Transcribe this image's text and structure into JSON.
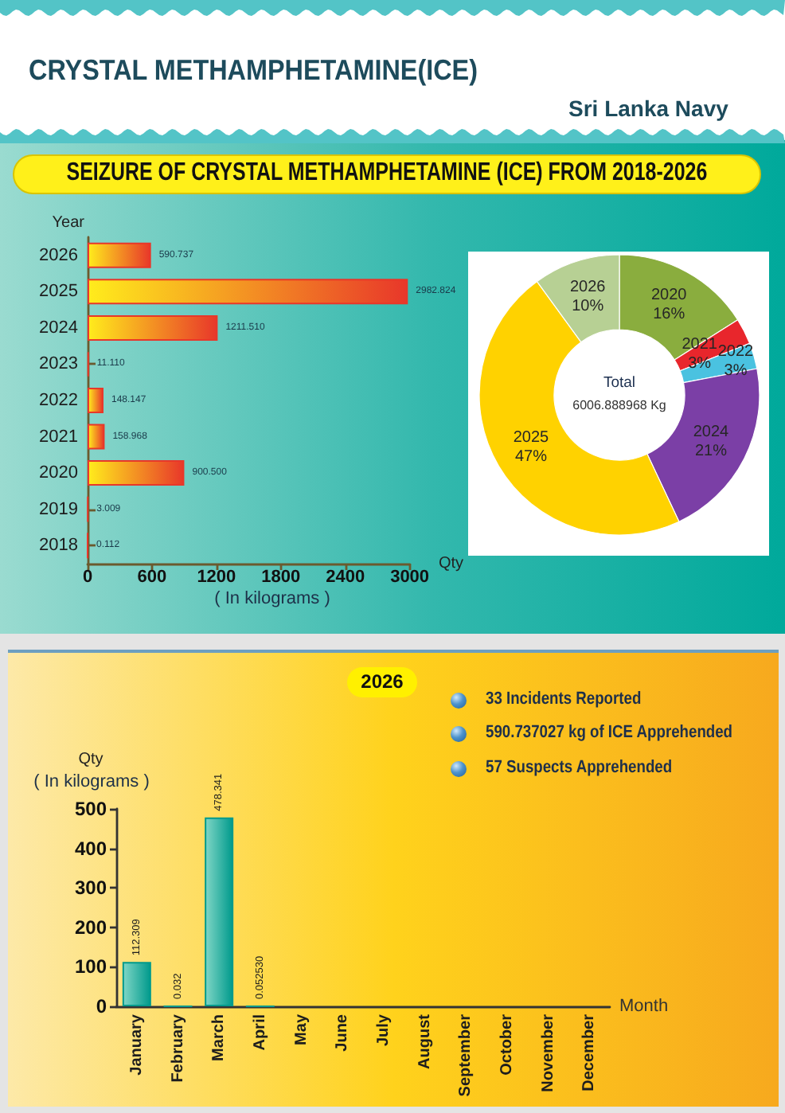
{
  "chart_data": [
    {
      "type": "bar",
      "orientation": "horizontal",
      "title": "CRYSTAL METHAMPHETAMINE(ICE)",
      "subtitle": "SEIZURE OF CRYSTAL METHAMPHETAMINE (ICE) FROM 2018-2026",
      "annotations": [
        "Sri Lanka Navy",
        "( In kilograms )"
      ],
      "ylabel": "Year",
      "xlabel": "Qty",
      "categories": [
        "2026",
        "2025",
        "2024",
        "2023",
        "2022",
        "2021",
        "2020",
        "2019",
        "2018"
      ],
      "values": [
        590.737,
        2982.824,
        1211.51,
        11.11,
        148.147,
        158.968,
        900.5,
        3.009,
        0.112
      ],
      "value_labels": [
        "590.737",
        "2982.824",
        "1211.510",
        "11.110",
        "148.147",
        "158.968",
        "900.500",
        "3.009",
        "0.112"
      ],
      "color": "#e8372a",
      "xlim": [
        0,
        3000
      ],
      "xticks": [
        0,
        600,
        1200,
        1800,
        2400,
        3000
      ]
    },
    {
      "type": "donut",
      "annotations": [
        "Total",
        "6006.888968 Kg"
      ],
      "categories": [
        "2020",
        "2021",
        "2022",
        "2024",
        "2025",
        "2026"
      ],
      "values": [
        16,
        3,
        3,
        21,
        47,
        10
      ],
      "value_labels": [
        "16%",
        "3%",
        "3%",
        "21%",
        "47%",
        "10%"
      ],
      "colors": [
        "#8aad3e",
        "#e8262c",
        "#4ac2e0",
        "#7b3fa6",
        "#ffd200",
        "#b7d094"
      ]
    },
    {
      "type": "bar",
      "title": "2026",
      "annotations": [
        "( In kilograms )",
        "33 Incidents Reported",
        "590.737027 kg of ICE Apprehended",
        "57 Suspects Apprehended"
      ],
      "ylabel": "Qty",
      "xlabel": "Month",
      "categories": [
        "January",
        "February",
        "March",
        "April",
        "May",
        "June",
        "July",
        "August",
        "September",
        "October",
        "November",
        "December"
      ],
      "values": [
        112.309,
        0.032,
        478.341,
        0.05253,
        null,
        null,
        null,
        null,
        null,
        null,
        null,
        null
      ],
      "value_labels": [
        "112.309",
        "0.032",
        "478.341",
        "0.052530",
        null,
        null,
        null,
        null,
        null,
        null,
        null,
        null
      ],
      "color": "#009a8c",
      "ylim": [
        0,
        500
      ],
      "yticks": [
        0,
        100,
        200,
        300,
        400,
        500
      ]
    }
  ]
}
